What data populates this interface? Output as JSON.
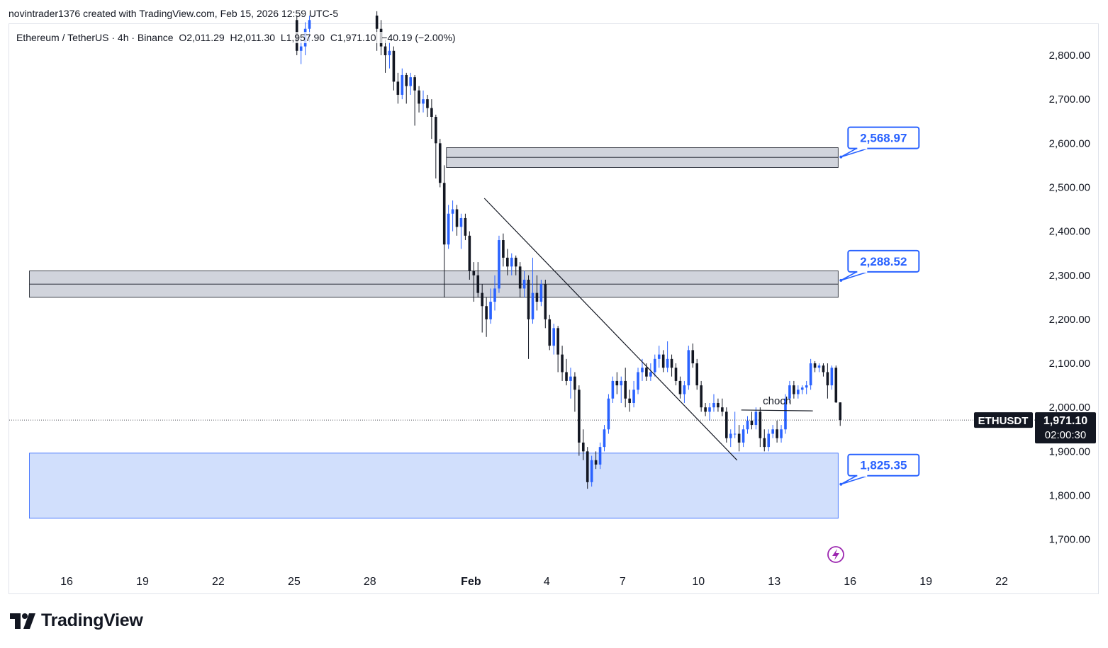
{
  "header": {
    "caption": "novintrader1376 created with TradingView.com, Feb 15, 2026 12:59 UTC-5"
  },
  "symbol_info": {
    "name": "Ethereum / TetherUS · 4h · Binance",
    "open": "O2,011.29",
    "high": "H2,011.30",
    "low": "L1,957.90",
    "close": "C1,971.10",
    "change": "−40.19 (−2.00%)"
  },
  "brand": {
    "name": "TradingView"
  },
  "colors": {
    "bull": "#2962ff",
    "bear": "#131722",
    "zone_gray": "#d1d4dc",
    "demand_zone": "#c9d9fb",
    "label_border": "#2962ff",
    "lightning": "#9c27b0"
  },
  "chart_data": {
    "type": "candlestick",
    "symbol": "ETHUSDT",
    "interval": "4h",
    "y_axis": {
      "ticks": [
        2800,
        2700,
        2600,
        2500,
        2400,
        2300,
        2200,
        2100,
        2000,
        1900,
        1800,
        1700
      ],
      "tick_labels": [
        "2,800.00",
        "2,700.00",
        "2,600.00",
        "2,500.00",
        "2,400.00",
        "2,300.00",
        "2,200.00",
        "2,100.00",
        "2,000.00",
        "1,900.00",
        "1,800.00",
        "1,700.00"
      ],
      "range": [
        1630,
        2890
      ]
    },
    "x_axis": {
      "range": [
        "2026-01-14T12:00",
        "2026-01-23T18:00"
      ],
      "ticks": [
        {
          "date": "2026-01-16",
          "label": "16"
        },
        {
          "date": "2026-01-19",
          "label": "19"
        },
        {
          "date": "2026-01-22",
          "label": "22"
        },
        {
          "date": "2026-01-25",
          "label": "25"
        },
        {
          "date": "2026-01-28",
          "label": "28"
        },
        {
          "date": "2026-02-01",
          "label": "Feb"
        },
        {
          "date": "2026-02-04",
          "label": "4"
        },
        {
          "date": "2026-02-07",
          "label": "7"
        },
        {
          "date": "2026-02-10",
          "label": "10"
        },
        {
          "date": "2026-02-13",
          "label": "13"
        },
        {
          "date": "2026-02-16",
          "label": "16"
        },
        {
          "date": "2026-02-19",
          "label": "19"
        },
        {
          "date": "2026-02-22",
          "label": "22"
        }
      ]
    },
    "price_tag": {
      "symbol": "ETHUSDT",
      "price": 1971.1,
      "price_label": "1,971.10",
      "countdown": "02:00:30"
    },
    "zones": [
      {
        "kind": "supply",
        "from": "2026-01-31T00:00",
        "to": "2026-02-15T12:00",
        "top": 2590,
        "mid": 2568,
        "bottom": 2545,
        "label": "2,568.97",
        "label_price": 2568.97
      },
      {
        "kind": "supply",
        "from": "2026-01-14T12:00",
        "to": "2026-02-15T12:00",
        "top": 2310,
        "mid": 2280,
        "bottom": 2250,
        "label": "2,288.52",
        "label_price": 2288.52
      },
      {
        "kind": "demand",
        "from": "2026-01-14T12:00",
        "to": "2026-02-15T12:00",
        "top": 1896,
        "bottom": 1748,
        "label": "1,825.35",
        "label_price": 1825.35
      }
    ],
    "trendline": {
      "from": {
        "date": "2026-02-01T12:00",
        "price": 2475
      },
      "to": {
        "date": "2026-02-11T12:00",
        "price": 1880
      }
    },
    "choch": {
      "label": "choch",
      "from": {
        "date": "2026-02-11T16:00",
        "price": 1994
      },
      "to": {
        "date": "2026-02-14T12:00",
        "price": 1992
      }
    },
    "candles": [
      {
        "t": "2026-01-25T00:00",
        "o": 2880,
        "h": 2890,
        "l": 2800,
        "c": 2810
      },
      {
        "t": "2026-01-25T04:00",
        "o": 2810,
        "h": 2840,
        "l": 2780,
        "c": 2820
      },
      {
        "t": "2026-01-25T08:00",
        "o": 2820,
        "h": 2875,
        "l": 2800,
        "c": 2860
      },
      {
        "t": "2026-01-25T12:00",
        "o": 2860,
        "h": 2890,
        "l": 2830,
        "c": 2880
      },
      {
        "t": "2026-01-28T04:00",
        "o": 2890,
        "h": 2900,
        "l": 2810,
        "c": 2860
      },
      {
        "t": "2026-01-28T08:00",
        "o": 2860,
        "h": 2880,
        "l": 2800,
        "c": 2820
      },
      {
        "t": "2026-01-28T12:00",
        "o": 2820,
        "h": 2835,
        "l": 2760,
        "c": 2800
      },
      {
        "t": "2026-01-28T16:00",
        "o": 2800,
        "h": 2830,
        "l": 2770,
        "c": 2810
      },
      {
        "t": "2026-01-28T20:00",
        "o": 2810,
        "h": 2820,
        "l": 2720,
        "c": 2740
      },
      {
        "t": "2026-01-29T00:00",
        "o": 2740,
        "h": 2760,
        "l": 2690,
        "c": 2710
      },
      {
        "t": "2026-01-29T04:00",
        "o": 2710,
        "h": 2770,
        "l": 2700,
        "c": 2755
      },
      {
        "t": "2026-01-29T08:00",
        "o": 2755,
        "h": 2760,
        "l": 2690,
        "c": 2730
      },
      {
        "t": "2026-01-29T12:00",
        "o": 2730,
        "h": 2760,
        "l": 2710,
        "c": 2750
      },
      {
        "t": "2026-01-29T16:00",
        "o": 2750,
        "h": 2755,
        "l": 2640,
        "c": 2720
      },
      {
        "t": "2026-01-29T20:00",
        "o": 2720,
        "h": 2730,
        "l": 2670,
        "c": 2690
      },
      {
        "t": "2026-01-30T00:00",
        "o": 2690,
        "h": 2720,
        "l": 2670,
        "c": 2700
      },
      {
        "t": "2026-01-30T04:00",
        "o": 2700,
        "h": 2710,
        "l": 2660,
        "c": 2680
      },
      {
        "t": "2026-01-30T08:00",
        "o": 2680,
        "h": 2700,
        "l": 2610,
        "c": 2660
      },
      {
        "t": "2026-01-30T12:00",
        "o": 2660,
        "h": 2665,
        "l": 2520,
        "c": 2600
      },
      {
        "t": "2026-01-30T16:00",
        "o": 2600,
        "h": 2610,
        "l": 2500,
        "c": 2510
      },
      {
        "t": "2026-01-30T20:00",
        "o": 2510,
        "h": 2550,
        "l": 2250,
        "c": 2370
      },
      {
        "t": "2026-01-31T00:00",
        "o": 2370,
        "h": 2460,
        "l": 2360,
        "c": 2440
      },
      {
        "t": "2026-01-31T04:00",
        "o": 2440,
        "h": 2470,
        "l": 2400,
        "c": 2450
      },
      {
        "t": "2026-01-31T08:00",
        "o": 2450,
        "h": 2460,
        "l": 2390,
        "c": 2410
      },
      {
        "t": "2026-01-31T12:00",
        "o": 2410,
        "h": 2440,
        "l": 2360,
        "c": 2430
      },
      {
        "t": "2026-01-31T16:00",
        "o": 2430,
        "h": 2440,
        "l": 2380,
        "c": 2390
      },
      {
        "t": "2026-01-31T20:00",
        "o": 2390,
        "h": 2400,
        "l": 2290,
        "c": 2310
      },
      {
        "t": "2026-02-01T00:00",
        "o": 2310,
        "h": 2330,
        "l": 2240,
        "c": 2300
      },
      {
        "t": "2026-02-01T04:00",
        "o": 2300,
        "h": 2330,
        "l": 2250,
        "c": 2260
      },
      {
        "t": "2026-02-01T08:00",
        "o": 2260,
        "h": 2280,
        "l": 2170,
        "c": 2230
      },
      {
        "t": "2026-02-01T12:00",
        "o": 2230,
        "h": 2250,
        "l": 2160,
        "c": 2200
      },
      {
        "t": "2026-02-01T16:00",
        "o": 2200,
        "h": 2270,
        "l": 2190,
        "c": 2240
      },
      {
        "t": "2026-02-01T20:00",
        "o": 2240,
        "h": 2300,
        "l": 2220,
        "c": 2270
      },
      {
        "t": "2026-02-02T00:00",
        "o": 2270,
        "h": 2390,
        "l": 2260,
        "c": 2380
      },
      {
        "t": "2026-02-02T04:00",
        "o": 2380,
        "h": 2395,
        "l": 2320,
        "c": 2340
      },
      {
        "t": "2026-02-02T08:00",
        "o": 2340,
        "h": 2360,
        "l": 2300,
        "c": 2320
      },
      {
        "t": "2026-02-02T12:00",
        "o": 2320,
        "h": 2350,
        "l": 2300,
        "c": 2340
      },
      {
        "t": "2026-02-02T16:00",
        "o": 2340,
        "h": 2345,
        "l": 2300,
        "c": 2320
      },
      {
        "t": "2026-02-02T20:00",
        "o": 2320,
        "h": 2330,
        "l": 2250,
        "c": 2270
      },
      {
        "t": "2026-02-03T00:00",
        "o": 2270,
        "h": 2310,
        "l": 2250,
        "c": 2290
      },
      {
        "t": "2026-02-03T04:00",
        "o": 2290,
        "h": 2300,
        "l": 2110,
        "c": 2200
      },
      {
        "t": "2026-02-03T08:00",
        "o": 2200,
        "h": 2340,
        "l": 2190,
        "c": 2260
      },
      {
        "t": "2026-02-03T12:00",
        "o": 2260,
        "h": 2300,
        "l": 2220,
        "c": 2240
      },
      {
        "t": "2026-02-03T16:00",
        "o": 2240,
        "h": 2290,
        "l": 2230,
        "c": 2280
      },
      {
        "t": "2026-02-03T20:00",
        "o": 2280,
        "h": 2290,
        "l": 2180,
        "c": 2200
      },
      {
        "t": "2026-02-04T00:00",
        "o": 2200,
        "h": 2210,
        "l": 2130,
        "c": 2140
      },
      {
        "t": "2026-02-04T04:00",
        "o": 2140,
        "h": 2190,
        "l": 2120,
        "c": 2180
      },
      {
        "t": "2026-02-04T08:00",
        "o": 2180,
        "h": 2185,
        "l": 2080,
        "c": 2120
      },
      {
        "t": "2026-02-04T12:00",
        "o": 2120,
        "h": 2140,
        "l": 2060,
        "c": 2080
      },
      {
        "t": "2026-02-04T16:00",
        "o": 2080,
        "h": 2110,
        "l": 2050,
        "c": 2060
      },
      {
        "t": "2026-02-04T20:00",
        "o": 2060,
        "h": 2090,
        "l": 2020,
        "c": 2070
      },
      {
        "t": "2026-02-05T00:00",
        "o": 2070,
        "h": 2080,
        "l": 1990,
        "c": 2040
      },
      {
        "t": "2026-02-05T04:00",
        "o": 2040,
        "h": 2050,
        "l": 1890,
        "c": 1920
      },
      {
        "t": "2026-02-05T08:00",
        "o": 1920,
        "h": 1950,
        "l": 1880,
        "c": 1900
      },
      {
        "t": "2026-02-05T12:00",
        "o": 1900,
        "h": 1910,
        "l": 1815,
        "c": 1830
      },
      {
        "t": "2026-02-05T16:00",
        "o": 1830,
        "h": 1890,
        "l": 1820,
        "c": 1880
      },
      {
        "t": "2026-02-05T20:00",
        "o": 1880,
        "h": 1900,
        "l": 1860,
        "c": 1870
      },
      {
        "t": "2026-02-06T00:00",
        "o": 1870,
        "h": 1920,
        "l": 1860,
        "c": 1910
      },
      {
        "t": "2026-02-06T04:00",
        "o": 1910,
        "h": 1960,
        "l": 1900,
        "c": 1950
      },
      {
        "t": "2026-02-06T08:00",
        "o": 1950,
        "h": 2030,
        "l": 1940,
        "c": 2020
      },
      {
        "t": "2026-02-06T12:00",
        "o": 2020,
        "h": 2070,
        "l": 2010,
        "c": 2060
      },
      {
        "t": "2026-02-06T16:00",
        "o": 2060,
        "h": 2080,
        "l": 2030,
        "c": 2050
      },
      {
        "t": "2026-02-06T20:00",
        "o": 2050,
        "h": 2070,
        "l": 2010,
        "c": 2060
      },
      {
        "t": "2026-02-07T00:00",
        "o": 2060,
        "h": 2090,
        "l": 2000,
        "c": 2020
      },
      {
        "t": "2026-02-07T04:00",
        "o": 2020,
        "h": 2040,
        "l": 1990,
        "c": 2010
      },
      {
        "t": "2026-02-07T08:00",
        "o": 2010,
        "h": 2060,
        "l": 2000,
        "c": 2040
      },
      {
        "t": "2026-02-07T12:00",
        "o": 2040,
        "h": 2090,
        "l": 2030,
        "c": 2080
      },
      {
        "t": "2026-02-07T16:00",
        "o": 2080,
        "h": 2110,
        "l": 2060,
        "c": 2090
      },
      {
        "t": "2026-02-07T20:00",
        "o": 2090,
        "h": 2100,
        "l": 2060,
        "c": 2070
      },
      {
        "t": "2026-02-08T00:00",
        "o": 2070,
        "h": 2100,
        "l": 2060,
        "c": 2080
      },
      {
        "t": "2026-02-08T04:00",
        "o": 2080,
        "h": 2120,
        "l": 2070,
        "c": 2110
      },
      {
        "t": "2026-02-08T08:00",
        "o": 2110,
        "h": 2140,
        "l": 2090,
        "c": 2120
      },
      {
        "t": "2026-02-08T12:00",
        "o": 2120,
        "h": 2130,
        "l": 2080,
        "c": 2090
      },
      {
        "t": "2026-02-08T16:00",
        "o": 2090,
        "h": 2150,
        "l": 2080,
        "c": 2110
      },
      {
        "t": "2026-02-08T20:00",
        "o": 2110,
        "h": 2120,
        "l": 2070,
        "c": 2090
      },
      {
        "t": "2026-02-09T00:00",
        "o": 2090,
        "h": 2100,
        "l": 2050,
        "c": 2060
      },
      {
        "t": "2026-02-09T04:00",
        "o": 2060,
        "h": 2070,
        "l": 2020,
        "c": 2030
      },
      {
        "t": "2026-02-09T08:00",
        "o": 2030,
        "h": 2060,
        "l": 2010,
        "c": 2050
      },
      {
        "t": "2026-02-09T12:00",
        "o": 2050,
        "h": 2140,
        "l": 2040,
        "c": 2130
      },
      {
        "t": "2026-02-09T16:00",
        "o": 2130,
        "h": 2145,
        "l": 2090,
        "c": 2100
      },
      {
        "t": "2026-02-09T20:00",
        "o": 2100,
        "h": 2110,
        "l": 2040,
        "c": 2050
      },
      {
        "t": "2026-02-10T00:00",
        "o": 2050,
        "h": 2060,
        "l": 1990,
        "c": 2000
      },
      {
        "t": "2026-02-10T04:00",
        "o": 2000,
        "h": 2010,
        "l": 1980,
        "c": 1990
      },
      {
        "t": "2026-02-10T08:00",
        "o": 1990,
        "h": 2010,
        "l": 1970,
        "c": 2000
      },
      {
        "t": "2026-02-10T12:00",
        "o": 2000,
        "h": 2030,
        "l": 1990,
        "c": 2010
      },
      {
        "t": "2026-02-10T16:00",
        "o": 2010,
        "h": 2020,
        "l": 1990,
        "c": 2000
      },
      {
        "t": "2026-02-10T20:00",
        "o": 2000,
        "h": 2020,
        "l": 1980,
        "c": 1990
      },
      {
        "t": "2026-02-11T00:00",
        "o": 1990,
        "h": 2000,
        "l": 1920,
        "c": 1930
      },
      {
        "t": "2026-02-11T04:00",
        "o": 1930,
        "h": 1950,
        "l": 1910,
        "c": 1940
      },
      {
        "t": "2026-02-11T08:00",
        "o": 1940,
        "h": 1990,
        "l": 1930,
        "c": 1940
      },
      {
        "t": "2026-02-11T12:00",
        "o": 1940,
        "h": 1960,
        "l": 1900,
        "c": 1920
      },
      {
        "t": "2026-02-11T16:00",
        "o": 1920,
        "h": 1960,
        "l": 1910,
        "c": 1950
      },
      {
        "t": "2026-02-11T20:00",
        "o": 1950,
        "h": 1980,
        "l": 1940,
        "c": 1970
      },
      {
        "t": "2026-02-12T00:00",
        "o": 1970,
        "h": 1990,
        "l": 1950,
        "c": 1960
      },
      {
        "t": "2026-02-12T04:00",
        "o": 1960,
        "h": 2000,
        "l": 1950,
        "c": 1990
      },
      {
        "t": "2026-02-12T08:00",
        "o": 1990,
        "h": 2000,
        "l": 1910,
        "c": 1930
      },
      {
        "t": "2026-02-12T12:00",
        "o": 1930,
        "h": 1950,
        "l": 1900,
        "c": 1910
      },
      {
        "t": "2026-02-12T16:00",
        "o": 1910,
        "h": 1950,
        "l": 1900,
        "c": 1940
      },
      {
        "t": "2026-02-12T20:00",
        "o": 1940,
        "h": 1960,
        "l": 1930,
        "c": 1950
      },
      {
        "t": "2026-02-13T00:00",
        "o": 1950,
        "h": 1970,
        "l": 1920,
        "c": 1930
      },
      {
        "t": "2026-02-13T04:00",
        "o": 1930,
        "h": 1960,
        "l": 1920,
        "c": 1950
      },
      {
        "t": "2026-02-13T08:00",
        "o": 1950,
        "h": 2030,
        "l": 1940,
        "c": 2020
      },
      {
        "t": "2026-02-13T12:00",
        "o": 2020,
        "h": 2060,
        "l": 2010,
        "c": 2050
      },
      {
        "t": "2026-02-13T16:00",
        "o": 2050,
        "h": 2060,
        "l": 2020,
        "c": 2030
      },
      {
        "t": "2026-02-13T20:00",
        "o": 2030,
        "h": 2050,
        "l": 2020,
        "c": 2040
      },
      {
        "t": "2026-02-14T00:00",
        "o": 2040,
        "h": 2050,
        "l": 2030,
        "c": 2045
      },
      {
        "t": "2026-02-14T04:00",
        "o": 2045,
        "h": 2060,
        "l": 2030,
        "c": 2050
      },
      {
        "t": "2026-02-14T08:00",
        "o": 2050,
        "h": 2110,
        "l": 2040,
        "c": 2100
      },
      {
        "t": "2026-02-14T12:00",
        "o": 2100,
        "h": 2105,
        "l": 2080,
        "c": 2090
      },
      {
        "t": "2026-02-14T16:00",
        "o": 2090,
        "h": 2100,
        "l": 2080,
        "c": 2095
      },
      {
        "t": "2026-02-14T20:00",
        "o": 2095,
        "h": 2100,
        "l": 2070,
        "c": 2080
      },
      {
        "t": "2026-02-15T00:00",
        "o": 2080,
        "h": 2100,
        "l": 2020,
        "c": 2050
      },
      {
        "t": "2026-02-15T04:00",
        "o": 2050,
        "h": 2095,
        "l": 2040,
        "c": 2090
      },
      {
        "t": "2026-02-15T08:00",
        "o": 2090,
        "h": 2095,
        "l": 2010,
        "c": 2011.29
      },
      {
        "t": "2026-02-15T12:00",
        "o": 2011.29,
        "h": 2011.3,
        "l": 1957.9,
        "c": 1971.1
      }
    ]
  }
}
